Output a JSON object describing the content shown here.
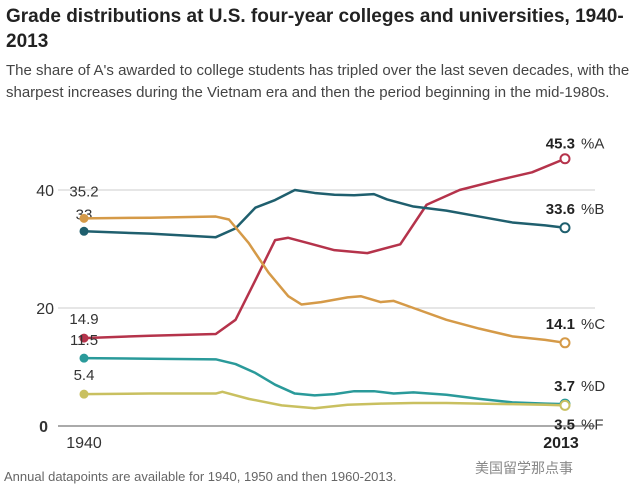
{
  "title": "Grade distributions at U.S. four-year colleges and universities, 1940-2013",
  "subtitle": "The share of A's awarded to college students has tripled over the last seven decades, with the sharpest increases during the Vietnam era and then the period beginning in the mid-1980s.",
  "note": "Annual datapoints are available for 1940, 1950 and then 1960-2013.",
  "watermark": "美国留学那点事",
  "chart_data": {
    "type": "line",
    "xlim": [
      1940,
      2013
    ],
    "ylim": [
      0,
      45.3
    ],
    "y_ticks": [
      "0",
      "20",
      "40"
    ],
    "x_ticks": [
      "1940",
      "2013"
    ],
    "grid": true,
    "series": [
      {
        "name": "%A",
        "color": "#b5334b",
        "start_label": "14.9",
        "end_label": "45.3",
        "x": [
          1940,
          1950,
          1960,
          1963,
          1966,
          1969,
          1971,
          1974,
          1978,
          1983,
          1988,
          1992,
          1997,
          2003,
          2008,
          2013
        ],
        "y": [
          14.9,
          15.3,
          15.6,
          18,
          24.7,
          31.5,
          31.9,
          31,
          29.8,
          29.3,
          30.8,
          37.5,
          40,
          41.7,
          43,
          45.3
        ]
      },
      {
        "name": "%B",
        "color": "#1f5f6e",
        "start_label": "33",
        "end_label": "33.6",
        "x": [
          1940,
          1950,
          1960,
          1963,
          1966,
          1969,
          1972,
          1975,
          1978,
          1981,
          1984,
          1986,
          1990,
          1995,
          2000,
          2005,
          2010,
          2013
        ],
        "y": [
          33,
          32.6,
          32,
          33.5,
          37,
          38.3,
          40,
          39.5,
          39.2,
          39.1,
          39.3,
          38.4,
          37.2,
          36.5,
          35.5,
          34.5,
          34,
          33.6
        ]
      },
      {
        "name": "%C",
        "color": "#d59a48",
        "start_label": "35.2",
        "end_label": "14.1",
        "x": [
          1940,
          1950,
          1960,
          1962,
          1965,
          1968,
          1971,
          1973,
          1976,
          1980,
          1982,
          1985,
          1987,
          1990,
          1995,
          2000,
          2005,
          2010,
          2013
        ],
        "y": [
          35.2,
          35.3,
          35.5,
          35,
          31,
          26,
          22,
          20.6,
          21,
          21.8,
          22,
          21,
          21.2,
          20,
          18,
          16.5,
          15.2,
          14.6,
          14.1
        ]
      },
      {
        "name": "%D",
        "color": "#2a9a9a",
        "start_label": "11.5",
        "end_label": "3.7",
        "x": [
          1940,
          1950,
          1960,
          1963,
          1966,
          1969,
          1972,
          1975,
          1978,
          1981,
          1984,
          1987,
          1990,
          1995,
          2000,
          2005,
          2010,
          2013
        ],
        "y": [
          11.5,
          11.4,
          11.3,
          10.5,
          9,
          7,
          5.5,
          5.2,
          5.4,
          5.9,
          5.9,
          5.5,
          5.7,
          5.3,
          4.6,
          4,
          3.8,
          3.7
        ]
      },
      {
        "name": "%F",
        "color": "#c9c060",
        "start_label": "5.4",
        "end_label": "3.5",
        "x": [
          1940,
          1950,
          1960,
          1961,
          1965,
          1970,
          1975,
          1980,
          1985,
          1990,
          1995,
          2000,
          2005,
          2010,
          2013
        ],
        "y": [
          5.4,
          5.5,
          5.5,
          5.8,
          4.6,
          3.5,
          3.0,
          3.6,
          3.8,
          3.9,
          3.9,
          3.8,
          3.7,
          3.6,
          3.5
        ]
      }
    ]
  }
}
